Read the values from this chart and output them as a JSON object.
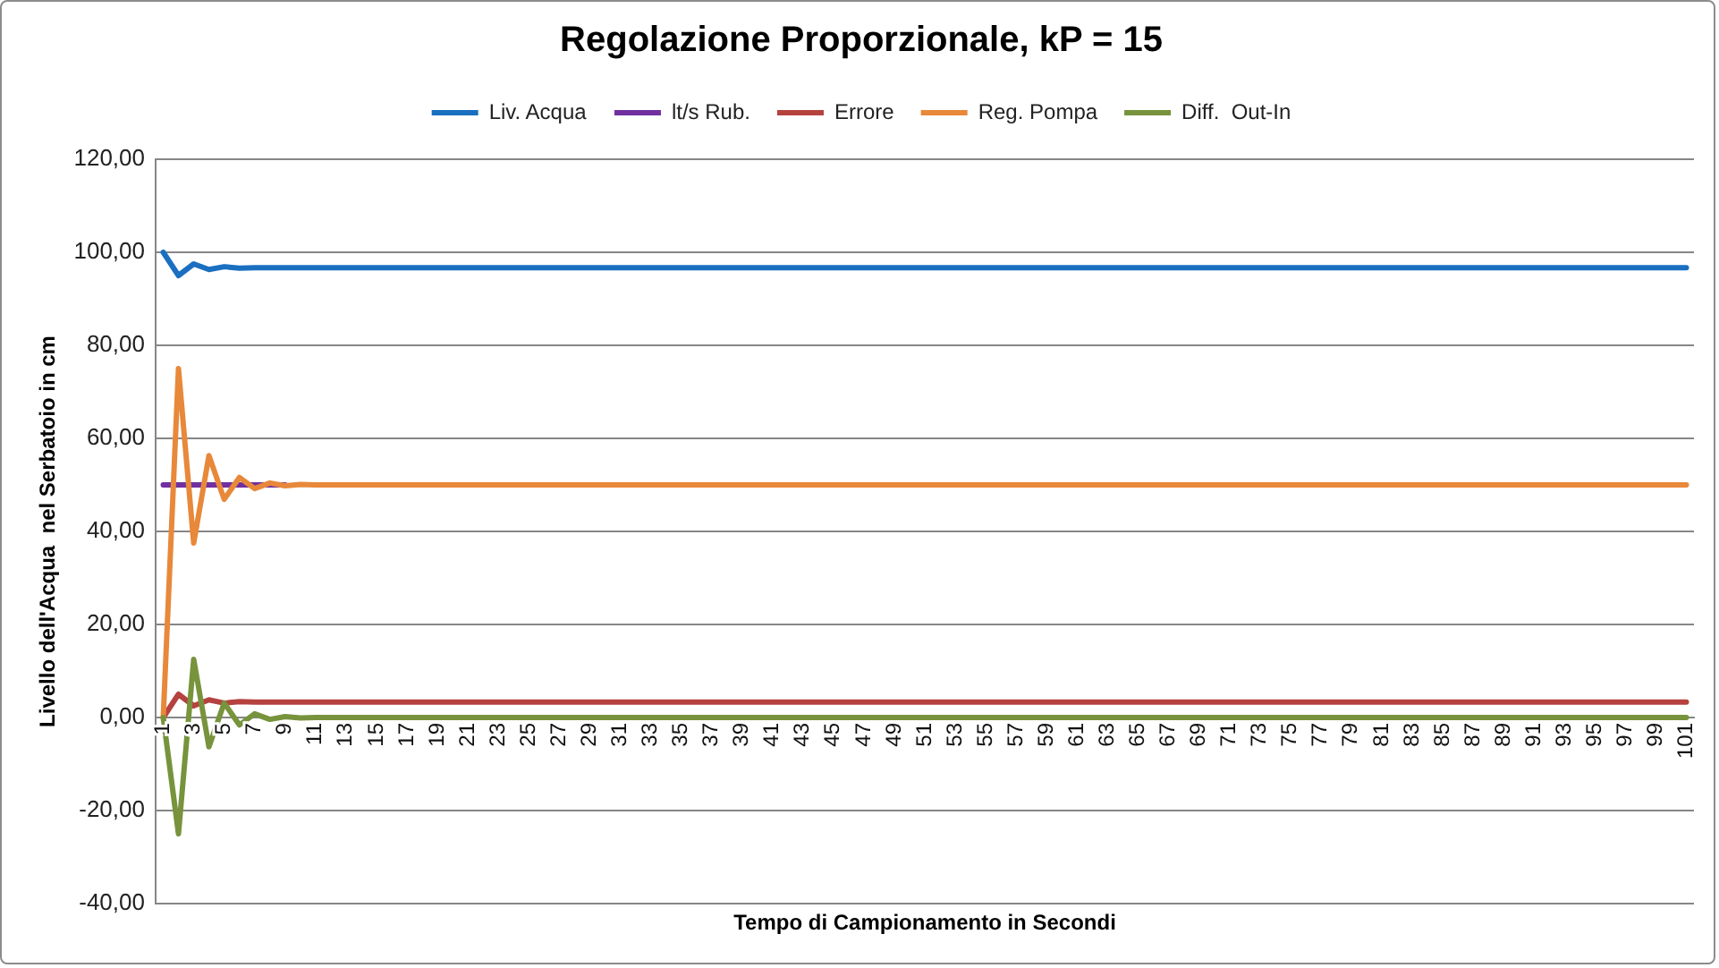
{
  "chart_data": {
    "type": "line",
    "title": "Regolazione Proporzionale, kP = 15",
    "xlabel": "Tempo di Campionamento in Secondi",
    "ylabel": "Livello dell'Acqua  nel Serbatoio in cm",
    "categories": [
      "1",
      null,
      "3",
      null,
      "5",
      null,
      "7",
      null,
      "9",
      null,
      "11",
      null,
      "13",
      null,
      "15",
      null,
      "17",
      null,
      "19",
      null,
      "21",
      null,
      "23",
      null,
      "25",
      null,
      "27",
      null,
      "29",
      null,
      "31",
      null,
      "33",
      null,
      "35",
      null,
      "37",
      null,
      "39",
      null,
      "41",
      null,
      "43",
      null,
      "45",
      null,
      "47",
      null,
      "49",
      null,
      "51",
      null,
      "53",
      null,
      "55",
      null,
      "57",
      null,
      "59",
      null,
      "61",
      null,
      "63",
      null,
      "65",
      null,
      "67",
      null,
      "69",
      null,
      "71",
      null,
      "73",
      null,
      "75",
      null,
      "77",
      null,
      "79",
      null,
      "81",
      null,
      "83",
      null,
      "85",
      null,
      "87",
      null,
      "89",
      null,
      "91",
      null,
      "93",
      null,
      "95",
      null,
      "97",
      null,
      "99",
      null,
      "101"
    ],
    "series": [
      {
        "name": "Liv. Acqua",
        "color": "#1a6fc0",
        "values": [
          100,
          95,
          97.5,
          96.3,
          96.9,
          96.6,
          96.7,
          96.7,
          96.7,
          96.7,
          96.7,
          96.7,
          96.7,
          96.7,
          96.7,
          96.7,
          96.7,
          96.7,
          96.7,
          96.7,
          96.7,
          96.7,
          96.7,
          96.7,
          96.7,
          96.7,
          96.7,
          96.7,
          96.7,
          96.7,
          96.7,
          96.7,
          96.7,
          96.7,
          96.7,
          96.7,
          96.7,
          96.7,
          96.7,
          96.7,
          96.7,
          96.7,
          96.7,
          96.7,
          96.7,
          96.7,
          96.7,
          96.7,
          96.7,
          96.7,
          96.7,
          96.7,
          96.7,
          96.7,
          96.7,
          96.7,
          96.7,
          96.7,
          96.7,
          96.7,
          96.7,
          96.7,
          96.7,
          96.7,
          96.7,
          96.7,
          96.7,
          96.7,
          96.7,
          96.7,
          96.7,
          96.7,
          96.7,
          96.7,
          96.7,
          96.7,
          96.7,
          96.7,
          96.7,
          96.7,
          96.7,
          96.7,
          96.7,
          96.7,
          96.7,
          96.7,
          96.7,
          96.7,
          96.7,
          96.7,
          96.7,
          96.7,
          96.7,
          96.7,
          96.7,
          96.7,
          96.7,
          96.7,
          96.7,
          96.7,
          96.7
        ]
      },
      {
        "name": "lt/s Rub.",
        "color": "#7030a0",
        "values": [
          50,
          50,
          50,
          50,
          50,
          50,
          50,
          50,
          50,
          null,
          null,
          null,
          null,
          null,
          null,
          null,
          null,
          null,
          null,
          null,
          null,
          null,
          null,
          null,
          null,
          null,
          null,
          null,
          null,
          null,
          null,
          null,
          null,
          null,
          null,
          null,
          null,
          null,
          null,
          null,
          null,
          null,
          null,
          null,
          null,
          null,
          null,
          null,
          null,
          null,
          null,
          null,
          null,
          null,
          null,
          null,
          null,
          null,
          null,
          null,
          null,
          null,
          null,
          null,
          null,
          null,
          null,
          null,
          null,
          null,
          null,
          null,
          null,
          null,
          null,
          null,
          null,
          null,
          null,
          null,
          null,
          null,
          null,
          null,
          null,
          null,
          null,
          null,
          null,
          null,
          null,
          null,
          null,
          null,
          null,
          null,
          null,
          null,
          null,
          null,
          null
        ]
      },
      {
        "name": "Errore",
        "color": "#b5423f",
        "values": [
          0,
          5,
          2.5,
          3.8,
          3.1,
          3.4,
          3.3,
          3.3,
          3.3,
          3.3,
          3.3,
          3.3,
          3.3,
          3.3,
          3.3,
          3.3,
          3.3,
          3.3,
          3.3,
          3.3,
          3.3,
          3.3,
          3.3,
          3.3,
          3.3,
          3.3,
          3.3,
          3.3,
          3.3,
          3.3,
          3.3,
          3.3,
          3.3,
          3.3,
          3.3,
          3.3,
          3.3,
          3.3,
          3.3,
          3.3,
          3.3,
          3.3,
          3.3,
          3.3,
          3.3,
          3.3,
          3.3,
          3.3,
          3.3,
          3.3,
          3.3,
          3.3,
          3.3,
          3.3,
          3.3,
          3.3,
          3.3,
          3.3,
          3.3,
          3.3,
          3.3,
          3.3,
          3.3,
          3.3,
          3.3,
          3.3,
          3.3,
          3.3,
          3.3,
          3.3,
          3.3,
          3.3,
          3.3,
          3.3,
          3.3,
          3.3,
          3.3,
          3.3,
          3.3,
          3.3,
          3.3,
          3.3,
          3.3,
          3.3,
          3.3,
          3.3,
          3.3,
          3.3,
          3.3,
          3.3,
          3.3,
          3.3,
          3.3,
          3.3,
          3.3,
          3.3,
          3.3,
          3.3,
          3.3,
          3.3,
          3.3
        ]
      },
      {
        "name": "Reg. Pompa",
        "color": "#e8883a",
        "values": [
          0,
          75,
          37.5,
          56.3,
          46.9,
          51.6,
          49.2,
          50.4,
          49.8,
          50.1,
          50,
          50,
          50,
          50,
          50,
          50,
          50,
          50,
          50,
          50,
          50,
          50,
          50,
          50,
          50,
          50,
          50,
          50,
          50,
          50,
          50,
          50,
          50,
          50,
          50,
          50,
          50,
          50,
          50,
          50,
          50,
          50,
          50,
          50,
          50,
          50,
          50,
          50,
          50,
          50,
          50,
          50,
          50,
          50,
          50,
          50,
          50,
          50,
          50,
          50,
          50,
          50,
          50,
          50,
          50,
          50,
          50,
          50,
          50,
          50,
          50,
          50,
          50,
          50,
          50,
          50,
          50,
          50,
          50,
          50,
          50,
          50,
          50,
          50,
          50,
          50,
          50,
          50,
          50,
          50,
          50,
          50,
          50,
          50,
          50,
          50,
          50,
          50,
          50,
          50,
          50
        ]
      },
      {
        "name": "Diff.  Out-In",
        "color": "#77933c",
        "values": [
          0,
          -25,
          12.5,
          -6.3,
          3.1,
          -1.6,
          0.8,
          -0.4,
          0.2,
          -0.1,
          0,
          0,
          0,
          0,
          0,
          0,
          0,
          0,
          0,
          0,
          0,
          0,
          0,
          0,
          0,
          0,
          0,
          0,
          0,
          0,
          0,
          0,
          0,
          0,
          0,
          0,
          0,
          0,
          0,
          0,
          0,
          0,
          0,
          0,
          0,
          0,
          0,
          0,
          0,
          0,
          0,
          0,
          0,
          0,
          0,
          0,
          0,
          0,
          0,
          0,
          0,
          0,
          0,
          0,
          0,
          0,
          0,
          0,
          0,
          0,
          0,
          0,
          0,
          0,
          0,
          0,
          0,
          0,
          0,
          0,
          0,
          0,
          0,
          0,
          0,
          0,
          0,
          0,
          0,
          0,
          0,
          0,
          0,
          0,
          0,
          0,
          0,
          0,
          0,
          0,
          0
        ]
      }
    ],
    "ylim": [
      -40,
      120
    ],
    "yticks": [
      {
        "value": -40,
        "label": "-40,00"
      },
      {
        "value": -20,
        "label": "-20,00"
      },
      {
        "value": 0,
        "label": "0,00"
      },
      {
        "value": 20,
        "label": "20,00"
      },
      {
        "value": 40,
        "label": "40,00"
      },
      {
        "value": 60,
        "label": "60,00"
      },
      {
        "value": 80,
        "label": "80,00"
      },
      {
        "value": 100,
        "label": "100,00"
      },
      {
        "value": 120,
        "label": "120,00"
      }
    ],
    "grid": "y",
    "legend": "top",
    "marker": "none",
    "line_style": "solid"
  }
}
